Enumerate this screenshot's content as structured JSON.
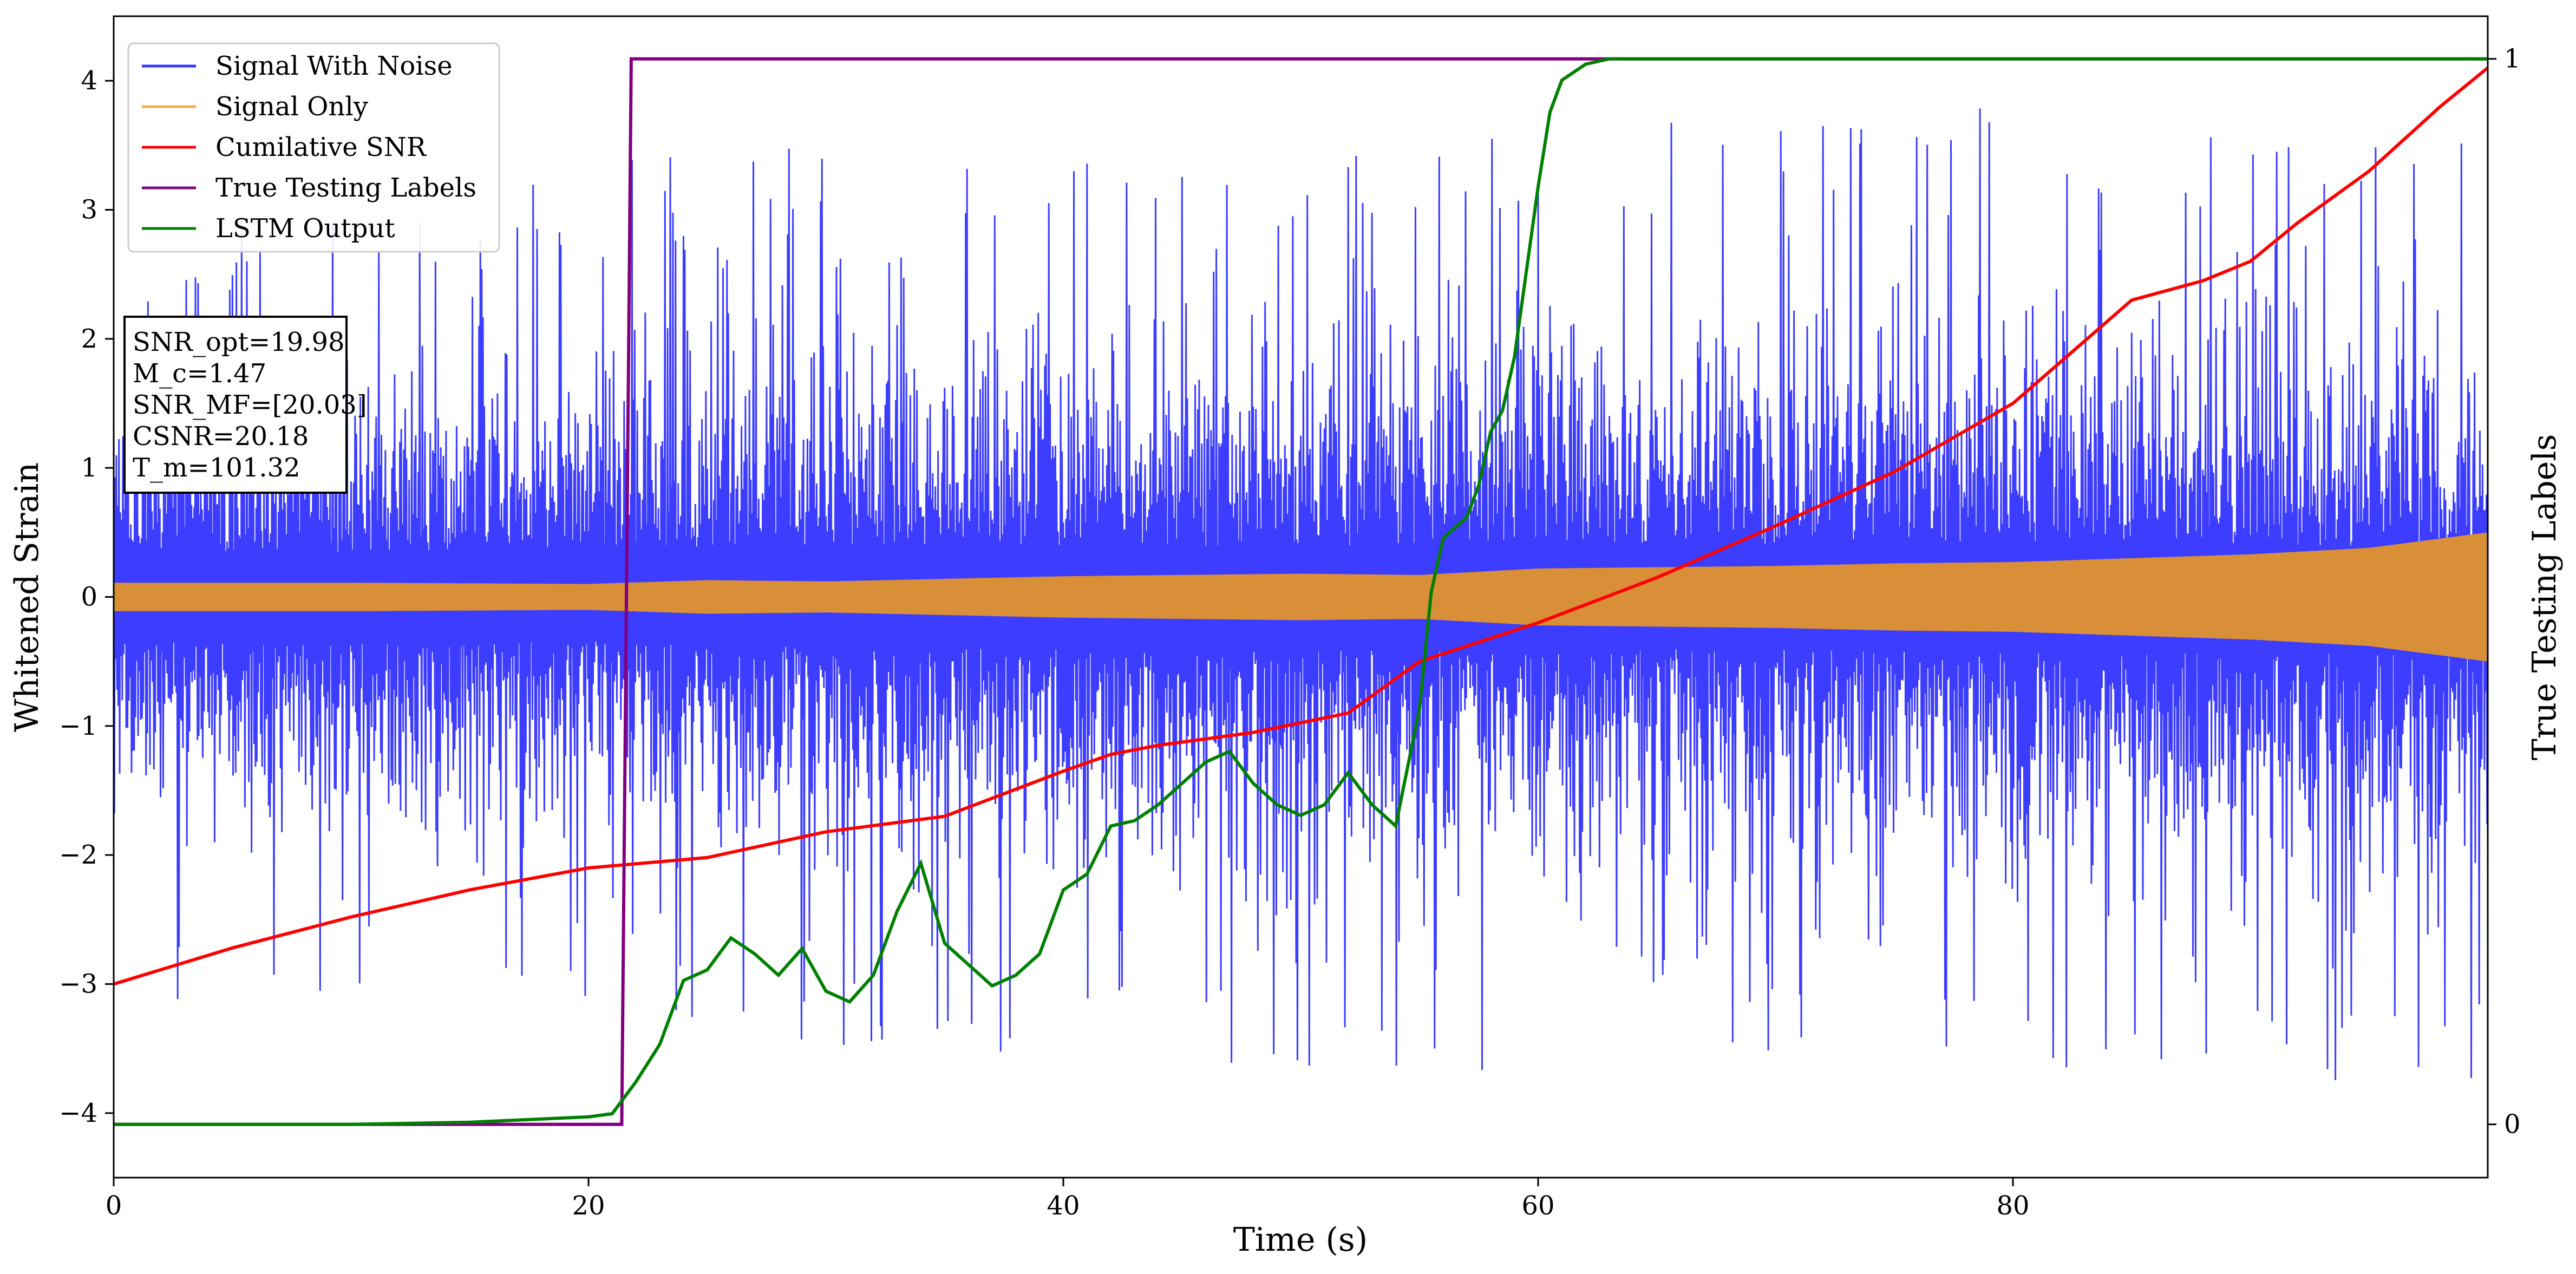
{
  "chart_data": {
    "type": "line",
    "xlabel": "Time (s)",
    "ylabel": "Whitened Strain",
    "y2label": "True Testing Labels",
    "xlim": [
      0,
      100
    ],
    "ylim": [
      -4.5,
      4.5
    ],
    "y2lim": [
      -0.05,
      1.04
    ],
    "x_ticks": [
      0,
      20,
      40,
      60,
      80
    ],
    "y_ticks": [
      -4,
      -3,
      -2,
      -1,
      0,
      1,
      2,
      3,
      4
    ],
    "y2_ticks": [
      0,
      1
    ],
    "grid": false,
    "legend_position": "upper-left",
    "colors": {
      "signal_with_noise": "#3333ff",
      "signal_only": "#d98f38",
      "cumulative_snr": "#ff0000",
      "true_labels": "#800080",
      "lstm_output": "#008000"
    },
    "series": [
      {
        "name": "Signal With Noise",
        "axis": "left",
        "description_level": "noise band roughly between -2.5 and 2.5 with spikes reaching about 3.3 and -4.1",
        "envelope_x": [
          0,
          10,
          20,
          30,
          40,
          50,
          60,
          70,
          80,
          90,
          100
        ],
        "envelope_upper": [
          2.4,
          2.3,
          2.5,
          2.7,
          2.6,
          2.6,
          2.8,
          2.7,
          2.9,
          2.7,
          2.6
        ],
        "envelope_lower": [
          -2.3,
          -2.4,
          -2.3,
          -2.6,
          -2.7,
          -2.8,
          -2.7,
          -2.7,
          -2.8,
          -2.9,
          -2.9
        ]
      },
      {
        "name": "Signal Only",
        "axis": "left",
        "x": [
          0,
          10,
          20,
          25,
          30,
          35,
          40,
          45,
          50,
          55,
          60,
          65,
          70,
          75,
          80,
          85,
          90,
          95,
          100
        ],
        "amplitude": [
          0.11,
          0.11,
          0.1,
          0.13,
          0.12,
          0.14,
          0.16,
          0.17,
          0.18,
          0.17,
          0.22,
          0.23,
          0.24,
          0.26,
          0.27,
          0.3,
          0.33,
          0.38,
          0.5
        ]
      },
      {
        "name": "Cumilative SNR",
        "axis": "left",
        "x": [
          0,
          5,
          10,
          15,
          20,
          25,
          30,
          35,
          40,
          42,
          44,
          48,
          52,
          55,
          60,
          65,
          70,
          75,
          80,
          85,
          88,
          90,
          92,
          95,
          98,
          100
        ],
        "y": [
          -3.0,
          -2.72,
          -2.48,
          -2.27,
          -2.1,
          -2.02,
          -1.82,
          -1.7,
          -1.35,
          -1.22,
          -1.15,
          -1.05,
          -0.9,
          -0.5,
          -0.2,
          0.15,
          0.55,
          0.97,
          1.5,
          2.3,
          2.45,
          2.6,
          2.9,
          3.3,
          3.8,
          4.1
        ]
      },
      {
        "name": "True Testing Labels",
        "axis": "right",
        "x": [
          0,
          21.4,
          21.8,
          22,
          100
        ],
        "y": [
          0.0,
          0.0,
          1.0,
          1.0,
          1.0
        ]
      },
      {
        "name": "LSTM Output",
        "axis": "right",
        "x": [
          0,
          10,
          15,
          18,
          20,
          21,
          22,
          23,
          24,
          25,
          25.5,
          26,
          27,
          28,
          29,
          30,
          31,
          32,
          33,
          34,
          35,
          36,
          37,
          38,
          39,
          40,
          41,
          42,
          43,
          44,
          45,
          46,
          47,
          48,
          49,
          50,
          51,
          52,
          53,
          54,
          55,
          55.5,
          56,
          57,
          57.5,
          58,
          58.5,
          59,
          59.5,
          60,
          60.5,
          61,
          62,
          63,
          64,
          65,
          100
        ],
        "y": [
          0.0,
          0.0,
          0.002,
          0.005,
          0.007,
          0.01,
          0.04,
          0.075,
          0.135,
          0.145,
          0.16,
          0.175,
          0.16,
          0.14,
          0.165,
          0.125,
          0.115,
          0.14,
          0.2,
          0.245,
          0.17,
          0.15,
          0.13,
          0.14,
          0.16,
          0.22,
          0.235,
          0.28,
          0.285,
          0.3,
          0.32,
          0.34,
          0.35,
          0.32,
          0.3,
          0.29,
          0.3,
          0.33,
          0.3,
          0.28,
          0.39,
          0.5,
          0.55,
          0.57,
          0.6,
          0.65,
          0.67,
          0.72,
          0.8,
          0.88,
          0.95,
          0.98,
          0.995,
          1.0,
          1.0,
          1.0,
          1.0
        ]
      }
    ]
  },
  "info_box": {
    "line1": "SNR_opt=19.98",
    "line2": "M_c=1.47",
    "line3": "SNR_MF=[20.03]",
    "line4": "CSNR=20.18",
    "line5": "T_m=101.32"
  }
}
